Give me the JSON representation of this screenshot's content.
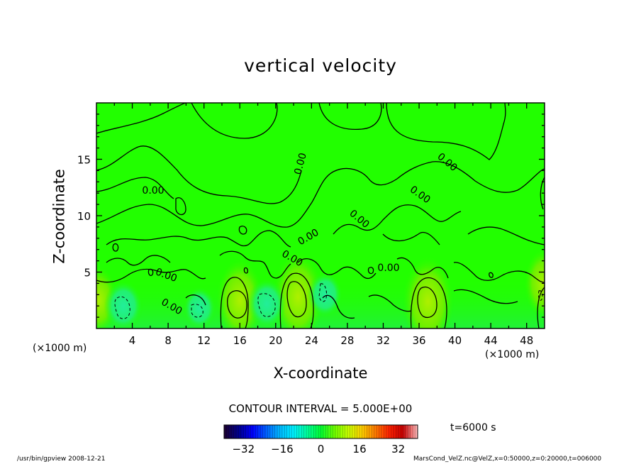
{
  "chart_data": {
    "type": "heatmap",
    "title": "vertical velocity",
    "xlabel": "X-coordinate",
    "ylabel": "Z-coordinate",
    "x_unit_label": "(×1000 m)",
    "y_unit_label": "(×1000 m)",
    "xlim": [
      0,
      50
    ],
    "ylim": [
      0,
      20
    ],
    "x_ticks": [
      4,
      8,
      12,
      16,
      20,
      24,
      28,
      32,
      36,
      40,
      44,
      48
    ],
    "y_ticks": [
      5,
      10,
      15
    ],
    "contour_interval_label": "CONTOUR INTERVAL = 5.000E+00",
    "contour_labels": [
      "0.00",
      "0.00",
      "0.00",
      "0.00",
      "0.00",
      "0.00",
      "0.00",
      "0.00",
      "0.00",
      "0.00"
    ],
    "colorbar": {
      "range": [
        -40,
        40
      ],
      "ticks": [
        -32,
        -16,
        0,
        16,
        32
      ],
      "colors": [
        "#1a0036",
        "#00008f",
        "#0000ff",
        "#0060ff",
        "#00b8ff",
        "#00f0ff",
        "#00ff9a",
        "#00ff33",
        "#6fff00",
        "#c8ff00",
        "#ffd000",
        "#ff7a00",
        "#ff2200",
        "#c80000",
        "#ffb0b0"
      ]
    },
    "updrafts": [
      {
        "x": 0.2,
        "z": 2.5,
        "value": 8
      },
      {
        "x": 16.0,
        "z": 2.5,
        "value": 12
      },
      {
        "x": 22.5,
        "z": 2.8,
        "value": 14
      },
      {
        "x": 37.0,
        "z": 2.4,
        "value": 14
      },
      {
        "x": 49.9,
        "z": 4.0,
        "value": 8
      }
    ],
    "downdrafts": [
      {
        "x": 3.0,
        "z": 2.0,
        "value": -8
      },
      {
        "x": 11.5,
        "z": 1.8,
        "value": -5
      },
      {
        "x": 19.0,
        "z": 2.2,
        "value": -8
      },
      {
        "x": 25.5,
        "z": 3.0,
        "value": -6
      }
    ]
  },
  "time_label": "t=6000 s",
  "footer_left": "/usr/bin/gpview   2008-12-21",
  "footer_right": "MarsCond_VelZ.nc@VelZ,x=0:50000,z=0:20000,t=006000",
  "colors": {
    "field": "#22ff00",
    "frame": "#000000"
  }
}
